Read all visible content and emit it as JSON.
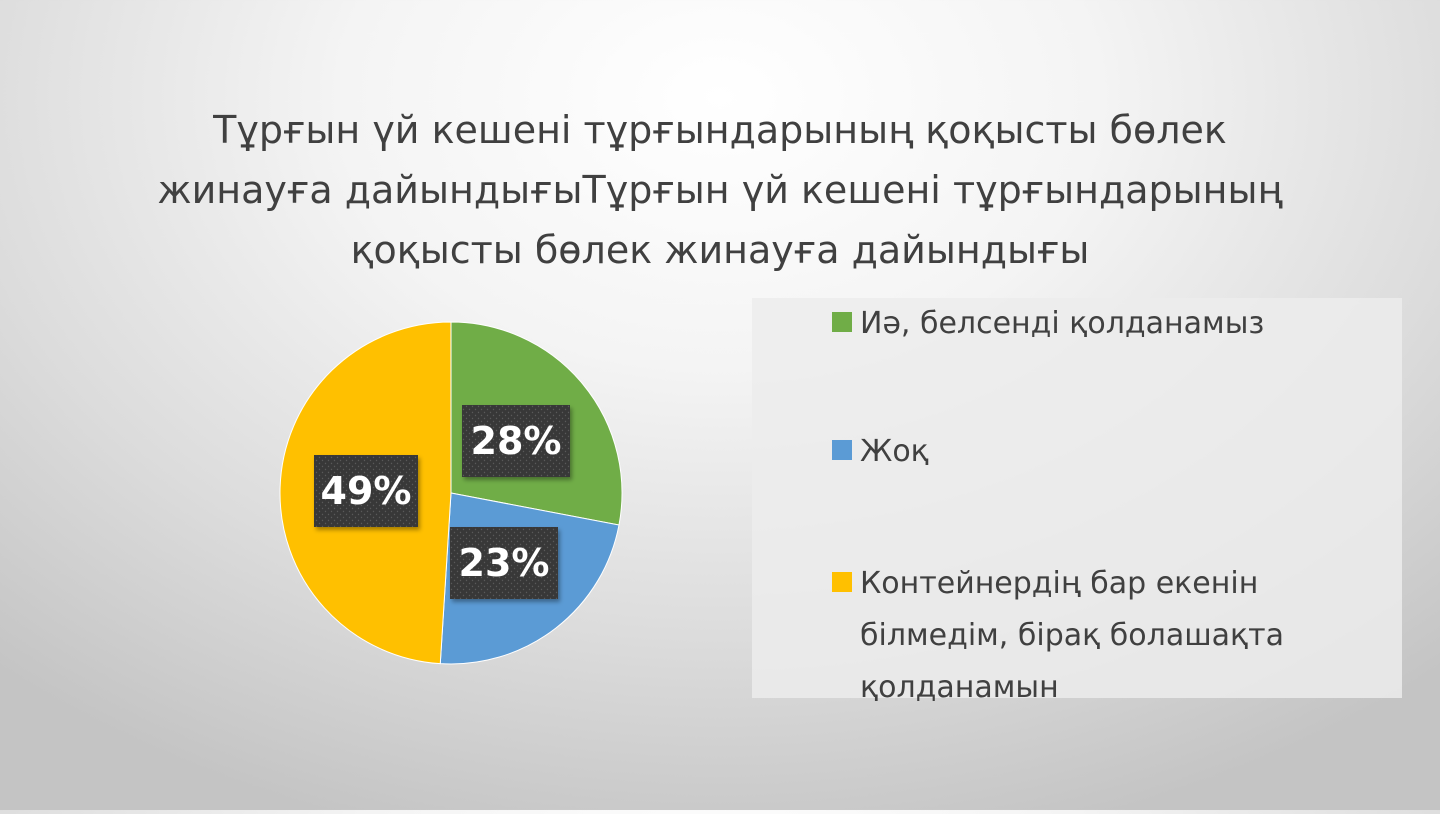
{
  "chart_data": {
    "type": "pie",
    "title": "Тұрғын үй кешені тұрғындарының қоқысты бөлек жинауға дайындығыТұрғын үй кешені тұрғындарының қоқысты бөлек жинауға дайындығы",
    "title_lines": [
      "Тұрғын үй кешені тұрғындарының қоқысты бөлек",
      "жинауға дайындығыТұрғын үй кешені тұрғындарының",
      "қоқысты бөлек жинауға дайындығы"
    ],
    "slices": [
      {
        "label": "Иә, белсенді қолданамыз",
        "value": 28,
        "display": "28%",
        "color": "#70ad47"
      },
      {
        "label": "Жоқ",
        "value": 23,
        "display": "23%",
        "color": "#5b9bd5"
      },
      {
        "label": "Контейнердің бар екенін білмедім, бірақ болашақта қолданамын",
        "value": 49,
        "display": "49%",
        "color": "#ffc000"
      }
    ],
    "legend_position": "right"
  },
  "legend": {
    "items": [
      {
        "lines": [
          "Иә, белсенді қолданамыз"
        ]
      },
      {
        "lines": [
          "Жоқ"
        ]
      },
      {
        "lines": [
          "Контейнердің бар екенін",
          "білмедім, бірақ болашақта",
          "қолданамын"
        ]
      }
    ]
  }
}
